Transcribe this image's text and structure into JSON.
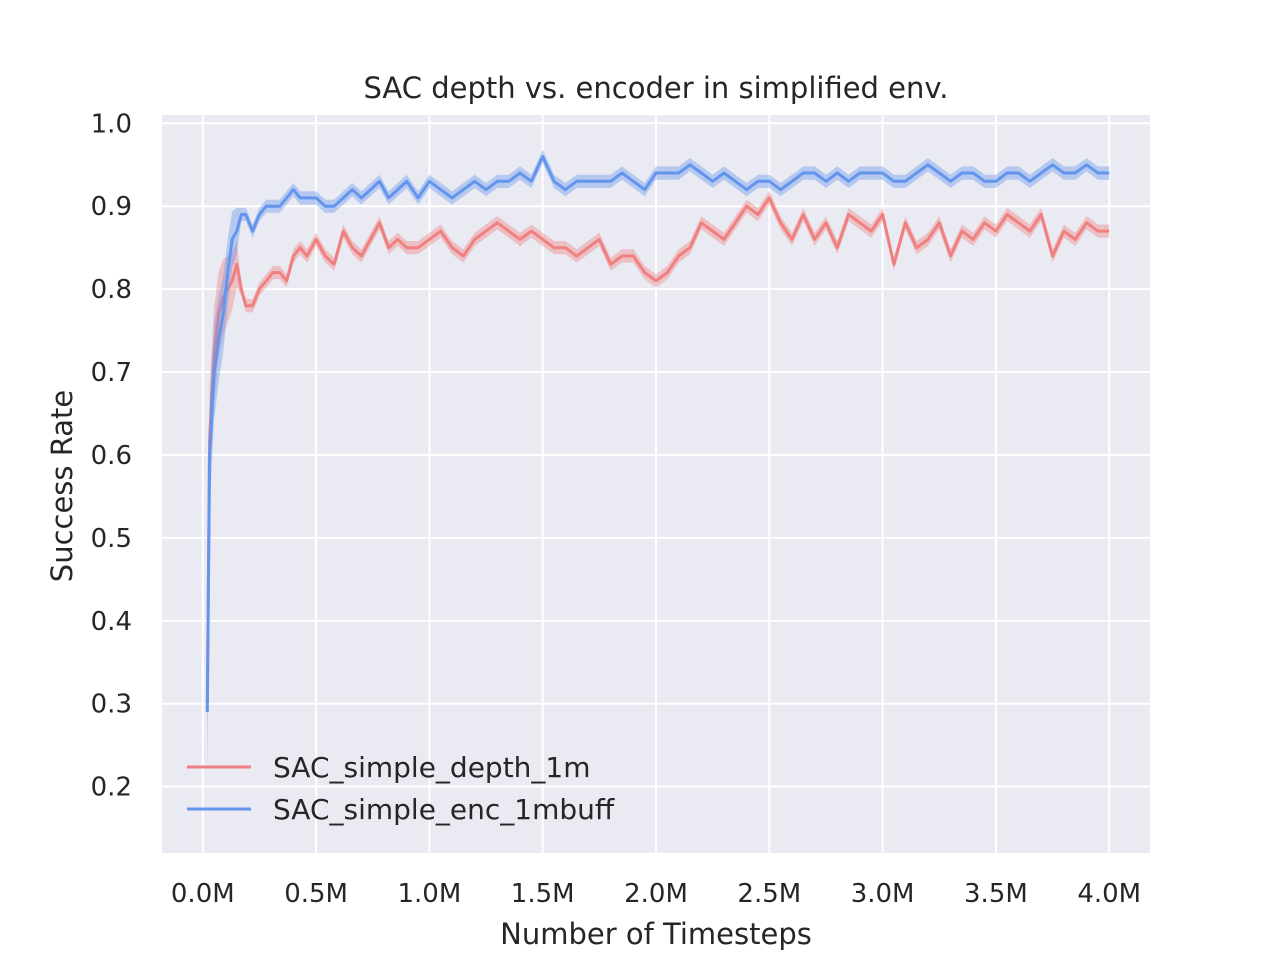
{
  "chart_data": {
    "type": "line",
    "title": "SAC depth vs. encoder in simplified env.",
    "xlabel": "Number of Timesteps",
    "ylabel": "Success Rate",
    "xlim": [
      -0.18,
      4.18
    ],
    "ylim": [
      0.12,
      1.01
    ],
    "x_ticks": [
      0.0,
      0.5,
      1.0,
      1.5,
      2.0,
      2.5,
      3.0,
      3.5,
      4.0
    ],
    "x_tick_labels": [
      "0.0M",
      "0.5M",
      "1.0M",
      "1.5M",
      "2.0M",
      "2.5M",
      "3.0M",
      "3.5M",
      "4.0M"
    ],
    "y_ticks": [
      0.2,
      0.3,
      0.4,
      0.5,
      0.6,
      0.7,
      0.8,
      0.9,
      1.0
    ],
    "y_tick_labels": [
      "0.2",
      "0.3",
      "0.4",
      "0.5",
      "0.6",
      "0.7",
      "0.8",
      "0.9",
      "1.0"
    ],
    "grid": true,
    "legend_position": "lower-left",
    "series": [
      {
        "name": "SAC_simple_depth_1m",
        "color": "#f08080",
        "x": [
          0.02,
          0.03,
          0.05,
          0.07,
          0.09,
          0.11,
          0.13,
          0.15,
          0.17,
          0.19,
          0.22,
          0.25,
          0.28,
          0.31,
          0.34,
          0.37,
          0.4,
          0.43,
          0.46,
          0.5,
          0.54,
          0.58,
          0.62,
          0.66,
          0.7,
          0.74,
          0.78,
          0.82,
          0.86,
          0.9,
          0.95,
          1.0,
          1.05,
          1.1,
          1.15,
          1.2,
          1.25,
          1.3,
          1.35,
          1.4,
          1.45,
          1.5,
          1.55,
          1.6,
          1.65,
          1.7,
          1.75,
          1.8,
          1.85,
          1.9,
          1.95,
          2.0,
          2.05,
          2.1,
          2.15,
          2.2,
          2.25,
          2.3,
          2.35,
          2.4,
          2.45,
          2.5,
          2.55,
          2.6,
          2.65,
          2.7,
          2.75,
          2.8,
          2.85,
          2.9,
          2.95,
          3.0,
          3.05,
          3.1,
          3.15,
          3.2,
          3.25,
          3.3,
          3.35,
          3.4,
          3.45,
          3.5,
          3.55,
          3.6,
          3.65,
          3.7,
          3.75,
          3.8,
          3.85,
          3.9,
          3.95,
          4.0
        ],
        "values": [
          0.3,
          0.62,
          0.72,
          0.77,
          0.79,
          0.8,
          0.81,
          0.83,
          0.8,
          0.78,
          0.78,
          0.8,
          0.81,
          0.82,
          0.82,
          0.81,
          0.84,
          0.85,
          0.84,
          0.86,
          0.84,
          0.83,
          0.87,
          0.85,
          0.84,
          0.86,
          0.88,
          0.85,
          0.86,
          0.85,
          0.85,
          0.86,
          0.87,
          0.85,
          0.84,
          0.86,
          0.87,
          0.88,
          0.87,
          0.86,
          0.87,
          0.86,
          0.85,
          0.85,
          0.84,
          0.85,
          0.86,
          0.83,
          0.84,
          0.84,
          0.82,
          0.81,
          0.82,
          0.84,
          0.85,
          0.88,
          0.87,
          0.86,
          0.88,
          0.9,
          0.89,
          0.91,
          0.88,
          0.86,
          0.89,
          0.86,
          0.88,
          0.85,
          0.89,
          0.88,
          0.87,
          0.89,
          0.83,
          0.88,
          0.85,
          0.86,
          0.88,
          0.84,
          0.87,
          0.86,
          0.88,
          0.87,
          0.89,
          0.88,
          0.87,
          0.89,
          0.84,
          0.87,
          0.86,
          0.88,
          0.87,
          0.87
        ]
      },
      {
        "name": "SAC_simple_enc_1mbuff",
        "color": "#6495ed",
        "x": [
          0.02,
          0.03,
          0.05,
          0.07,
          0.09,
          0.11,
          0.13,
          0.15,
          0.17,
          0.19,
          0.22,
          0.25,
          0.28,
          0.31,
          0.34,
          0.37,
          0.4,
          0.43,
          0.46,
          0.5,
          0.54,
          0.58,
          0.62,
          0.66,
          0.7,
          0.74,
          0.78,
          0.82,
          0.86,
          0.9,
          0.95,
          1.0,
          1.05,
          1.1,
          1.15,
          1.2,
          1.25,
          1.3,
          1.35,
          1.4,
          1.45,
          1.5,
          1.55,
          1.6,
          1.65,
          1.7,
          1.75,
          1.8,
          1.85,
          1.9,
          1.95,
          2.0,
          2.05,
          2.1,
          2.15,
          2.2,
          2.25,
          2.3,
          2.35,
          2.4,
          2.45,
          2.5,
          2.55,
          2.6,
          2.65,
          2.7,
          2.75,
          2.8,
          2.85,
          2.9,
          2.95,
          3.0,
          3.05,
          3.1,
          3.15,
          3.2,
          3.25,
          3.3,
          3.35,
          3.4,
          3.45,
          3.5,
          3.55,
          3.6,
          3.65,
          3.7,
          3.75,
          3.8,
          3.85,
          3.9,
          3.95,
          4.0
        ],
        "values": [
          0.29,
          0.6,
          0.7,
          0.74,
          0.77,
          0.82,
          0.86,
          0.87,
          0.89,
          0.89,
          0.87,
          0.89,
          0.9,
          0.9,
          0.9,
          0.91,
          0.92,
          0.91,
          0.91,
          0.91,
          0.9,
          0.9,
          0.91,
          0.92,
          0.91,
          0.92,
          0.93,
          0.91,
          0.92,
          0.93,
          0.91,
          0.93,
          0.92,
          0.91,
          0.92,
          0.93,
          0.92,
          0.93,
          0.93,
          0.94,
          0.93,
          0.96,
          0.93,
          0.92,
          0.93,
          0.93,
          0.93,
          0.93,
          0.94,
          0.93,
          0.92,
          0.94,
          0.94,
          0.94,
          0.95,
          0.94,
          0.93,
          0.94,
          0.93,
          0.92,
          0.93,
          0.93,
          0.92,
          0.93,
          0.94,
          0.94,
          0.93,
          0.94,
          0.93,
          0.94,
          0.94,
          0.94,
          0.93,
          0.93,
          0.94,
          0.95,
          0.94,
          0.93,
          0.94,
          0.94,
          0.93,
          0.93,
          0.94,
          0.94,
          0.93,
          0.94,
          0.95,
          0.94,
          0.94,
          0.95,
          0.94,
          0.94
        ]
      }
    ]
  }
}
